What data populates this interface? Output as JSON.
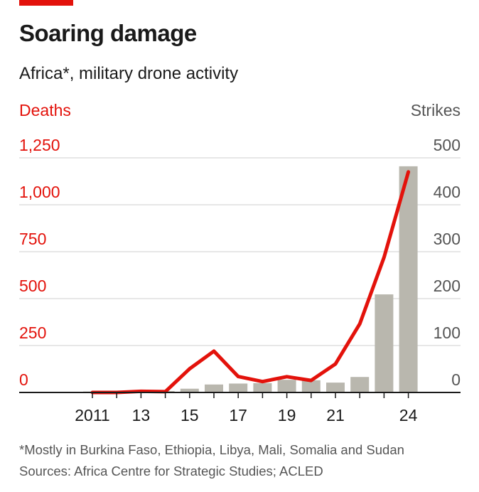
{
  "title": "Soaring damage",
  "subtitle": "Africa*, military drone activity",
  "footnote": "*Mostly in Burkina Faso, Ethiopia, Libya, Mali, Somalia and Sudan",
  "sources": "Sources: Africa Centre for Strategic Studies; ACLED",
  "colors": {
    "accent": "#e3120b",
    "bars": "#b9b7ae",
    "text": "#1a1a1a",
    "grid": "#cfcfcf"
  },
  "chart_data": {
    "type": "bar+line",
    "left_axis": {
      "label": "Deaths",
      "ticks": [
        "1,250",
        "1,000",
        "750",
        "500",
        "250",
        "0"
      ],
      "ylim": [
        0,
        1250
      ]
    },
    "right_axis": {
      "label": "Strikes",
      "ticks": [
        "500",
        "400",
        "300",
        "200",
        "100",
        "0"
      ],
      "ylim": [
        0,
        500
      ]
    },
    "x_ticks": [
      "2011",
      "13",
      "15",
      "17",
      "19",
      "21",
      "24"
    ],
    "years": [
      2011,
      2012,
      2013,
      2014,
      2015,
      2016,
      2017,
      2018,
      2019,
      2020,
      2021,
      2022,
      2023,
      2024
    ],
    "bars_strikes": [
      2,
      1,
      2,
      3,
      8,
      17,
      19,
      20,
      27,
      26,
      21,
      33,
      209,
      482
    ],
    "line_deaths": [
      0,
      0,
      6,
      4,
      126,
      220,
      85,
      58,
      84,
      64,
      152,
      365,
      720,
      1175
    ],
    "grid": true
  }
}
